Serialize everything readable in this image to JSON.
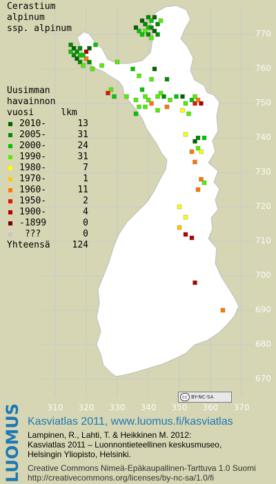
{
  "title": [
    "Cerastium",
    "alpinum",
    "ssp. alpinum"
  ],
  "legend": {
    "header": [
      "Uusimman",
      "havainnon",
      "vuosi     lkm"
    ],
    "rows": [
      {
        "label": "2010-",
        "count": "13",
        "color": "#006400"
      },
      {
        "label": "2005-",
        "count": "31",
        "color": "#008c00"
      },
      {
        "label": "2000-",
        "count": "24",
        "color": "#00c800"
      },
      {
        "label": "1990-",
        "count": "31",
        "color": "#50f000"
      },
      {
        "label": "1980-",
        "count": "7",
        "color": "#ffff00"
      },
      {
        "label": "1970-",
        "count": "1",
        "color": "#ffc800"
      },
      {
        "label": "1960-",
        "count": "11",
        "color": "#ff7800"
      },
      {
        "label": "1950-",
        "count": "2",
        "color": "#e11400"
      },
      {
        "label": "1900-",
        "count": "4",
        "color": "#b40000"
      },
      {
        "label": "-1899",
        "count": "0",
        "color": "#780000"
      },
      {
        "label": " ???",
        "count": "0",
        "color": "#c8c8c8"
      }
    ],
    "total_label": "Yhteensä",
    "total_count": "124"
  },
  "y_ticks": [
    "770",
    "760",
    "750",
    "740",
    "730",
    "720",
    "710",
    "700",
    "690",
    "680",
    "670"
  ],
  "x_ticks": [
    "310",
    "320",
    "330",
    "340",
    "350",
    "360",
    "370"
  ],
  "license_badge": "BY-NC-SA",
  "footer": {
    "brand": "LUOMUS",
    "title": "Kasviatlas 2011, www.luomus.fi/kasviatlas",
    "ref": [
      "Lampinen, R., Lahti, T. & Heikkinen M. 2012:",
      "Kasviatlas 2011 – Luonnontieteellinen keskusmuseo,",
      "Helsingin Yliopisto, Helsinki."
    ],
    "license": [
      "Creative Commons Nimeä-Epäkaupallinen-Tarttuva 1.0 Suomi",
      "http://creativecommons.org/licenses/by-nc-sa/1.0/fi"
    ]
  },
  "colors": {
    "land": "#ffffff",
    "grid": "#c8c8c8",
    "background": "#d6d6b4",
    "footer_blue": "#1e78b4"
  },
  "observations": [
    {
      "e": 338,
      "n": 774,
      "c": 0
    },
    {
      "e": 340,
      "n": 775,
      "c": 1
    },
    {
      "e": 341,
      "n": 774,
      "c": 2
    },
    {
      "e": 342,
      "n": 775,
      "c": 0
    },
    {
      "e": 339,
      "n": 773,
      "c": 1
    },
    {
      "e": 340,
      "n": 772,
      "c": 2
    },
    {
      "e": 341,
      "n": 772,
      "c": 1
    },
    {
      "e": 342,
      "n": 771,
      "c": 0
    },
    {
      "e": 339,
      "n": 771,
      "c": 3
    },
    {
      "e": 343,
      "n": 773,
      "c": 1
    },
    {
      "e": 338,
      "n": 770,
      "c": 2
    },
    {
      "e": 340,
      "n": 770,
      "c": 1
    },
    {
      "e": 341,
      "n": 769,
      "c": 3
    },
    {
      "e": 337,
      "n": 771,
      "c": 2
    },
    {
      "e": 336,
      "n": 772,
      "c": 0
    },
    {
      "e": 343,
      "n": 770,
      "c": 1
    },
    {
      "e": 344,
      "n": 774,
      "c": 3
    },
    {
      "e": 315,
      "n": 767,
      "c": 1
    },
    {
      "e": 316,
      "n": 766,
      "c": 0
    },
    {
      "e": 317,
      "n": 765,
      "c": 1
    },
    {
      "e": 318,
      "n": 764,
      "c": 2
    },
    {
      "e": 316,
      "n": 764,
      "c": 1
    },
    {
      "e": 317,
      "n": 763,
      "c": 0
    },
    {
      "e": 318,
      "n": 762,
      "c": 1
    },
    {
      "e": 319,
      "n": 761,
      "c": 3
    },
    {
      "e": 320,
      "n": 765,
      "c": 8
    },
    {
      "e": 320,
      "n": 763,
      "c": 6
    },
    {
      "e": 319,
      "n": 764,
      "c": 2
    },
    {
      "e": 321,
      "n": 762,
      "c": 1
    },
    {
      "e": 322,
      "n": 760,
      "c": 3
    },
    {
      "e": 321,
      "n": 766,
      "c": 0
    },
    {
      "e": 315,
      "n": 765,
      "c": 2
    },
    {
      "e": 318,
      "n": 766,
      "c": 1
    },
    {
      "e": 323,
      "n": 767,
      "c": 2
    },
    {
      "e": 325,
      "n": 761,
      "c": 3
    },
    {
      "e": 330,
      "n": 762,
      "c": 3
    },
    {
      "e": 335,
      "n": 760,
      "c": 2
    },
    {
      "e": 342,
      "n": 760,
      "c": 0
    },
    {
      "e": 341,
      "n": 757,
      "c": 3
    },
    {
      "e": 337,
      "n": 758,
      "c": 3
    },
    {
      "e": 346,
      "n": 757,
      "c": 1
    },
    {
      "e": 328,
      "n": 754,
      "c": 3
    },
    {
      "e": 327,
      "n": 753,
      "c": 7
    },
    {
      "e": 329,
      "n": 752,
      "c": 2
    },
    {
      "e": 333,
      "n": 752,
      "c": 3
    },
    {
      "e": 336,
      "n": 751,
      "c": 3
    },
    {
      "e": 338,
      "n": 754,
      "c": 2
    },
    {
      "e": 339,
      "n": 752,
      "c": 3
    },
    {
      "e": 340,
      "n": 751,
      "c": 3
    },
    {
      "e": 341,
      "n": 750,
      "c": 6
    },
    {
      "e": 339,
      "n": 749,
      "c": 3
    },
    {
      "e": 337,
      "n": 749,
      "c": 3
    },
    {
      "e": 343,
      "n": 752,
      "c": 3
    },
    {
      "e": 344,
      "n": 753,
      "c": 3
    },
    {
      "e": 345,
      "n": 752,
      "c": 1
    },
    {
      "e": 347,
      "n": 751,
      "c": 3
    },
    {
      "e": 349,
      "n": 752,
      "c": 2
    },
    {
      "e": 351,
      "n": 752,
      "c": 0
    },
    {
      "e": 352,
      "n": 750,
      "c": 3
    },
    {
      "e": 354,
      "n": 751,
      "c": 2
    },
    {
      "e": 355,
      "n": 750,
      "c": 7
    },
    {
      "e": 355,
      "n": 752,
      "c": 3
    },
    {
      "e": 356,
      "n": 751,
      "c": 6
    },
    {
      "e": 357,
      "n": 750,
      "c": 8
    },
    {
      "e": 346,
      "n": 749,
      "c": 6
    },
    {
      "e": 343,
      "n": 748,
      "c": 3
    },
    {
      "e": 351,
      "n": 748,
      "c": 4
    },
    {
      "e": 353,
      "n": 747,
      "c": 3
    },
    {
      "e": 336,
      "n": 747,
      "c": 2
    },
    {
      "e": 356,
      "n": 740,
      "c": 1
    },
    {
      "e": 355,
      "n": 739,
      "c": 0
    },
    {
      "e": 356,
      "n": 737,
      "c": 3
    },
    {
      "e": 352,
      "n": 741,
      "c": 4
    },
    {
      "e": 357,
      "n": 736,
      "c": 4
    },
    {
      "e": 354,
      "n": 736,
      "c": 6
    },
    {
      "e": 355,
      "n": 733,
      "c": 6
    },
    {
      "e": 357,
      "n": 728,
      "c": 6
    },
    {
      "e": 358,
      "n": 727,
      "c": 3
    },
    {
      "e": 356,
      "n": 725,
      "c": 6
    },
    {
      "e": 350,
      "n": 720,
      "c": 4
    },
    {
      "e": 352,
      "n": 717,
      "c": 4
    },
    {
      "e": 350,
      "n": 714,
      "c": 5
    },
    {
      "e": 352,
      "n": 712,
      "c": 8
    },
    {
      "e": 354,
      "n": 711,
      "c": 8
    },
    {
      "e": 355,
      "n": 698,
      "c": 8
    },
    {
      "e": 364,
      "n": 690,
      "c": 6
    },
    {
      "e": 358,
      "n": 740,
      "c": 2
    }
  ]
}
